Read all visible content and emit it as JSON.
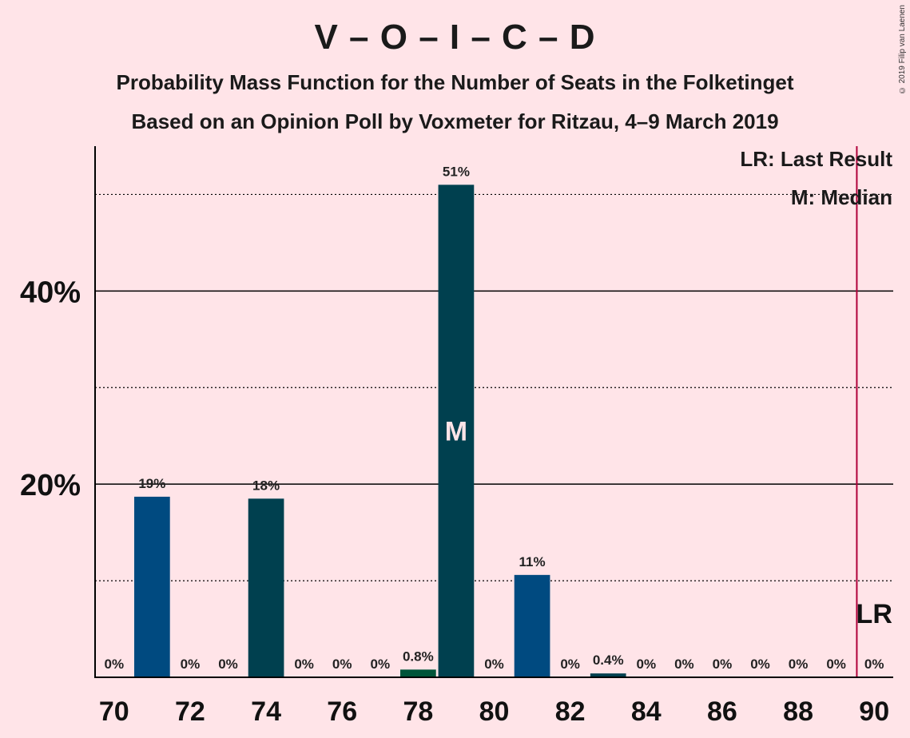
{
  "title": "V – O – I – C – D",
  "subtitle_1": "Probability Mass Function for the Number of Seats in the Folketinget",
  "subtitle_2": "Based on an Opinion Poll by Voxmeter for Ritzau, 4–9 March 2019",
  "copyright": "© 2019 Filip van Laenen",
  "legend": {
    "last_result": "LR: Last Result",
    "median": "M: Median"
  },
  "markers": {
    "median_label": "M",
    "last_result_label": "LR"
  },
  "colors": {
    "background": "#FFE4E8",
    "bar_blue": "#004A80",
    "bar_teal": "#00404F",
    "bar_green": "#00553A",
    "last_result_line": "#B0003A"
  },
  "chart_data": {
    "type": "bar",
    "xlabel": "",
    "ylabel": "",
    "x_ticks": [
      70,
      72,
      74,
      76,
      78,
      80,
      82,
      84,
      86,
      88,
      90
    ],
    "y_ticks": [
      {
        "value": 20,
        "label": "20%"
      },
      {
        "value": 40,
        "label": "40%"
      }
    ],
    "ylim": [
      0,
      55
    ],
    "xlim": [
      69.5,
      90.5
    ],
    "gridlines": {
      "solid": [
        20,
        40
      ],
      "dotted": [
        10,
        30,
        50
      ]
    },
    "median": 79,
    "last_result": 90,
    "x": [
      70,
      71,
      72,
      73,
      74,
      75,
      76,
      77,
      78,
      79,
      80,
      81,
      82,
      83,
      84,
      85,
      86,
      87,
      88,
      89,
      90
    ],
    "values": [
      0,
      18.7,
      0,
      0,
      18.5,
      0,
      0,
      0,
      0.8,
      51,
      0,
      10.6,
      0,
      0.4,
      0,
      0,
      0,
      0,
      0,
      0,
      0
    ],
    "labels": [
      "0%",
      "19%",
      "0%",
      "0%",
      "18%",
      "0%",
      "0%",
      "0%",
      "0.8%",
      "51%",
      "0%",
      "11%",
      "0%",
      "0.4%",
      "0%",
      "0%",
      "0%",
      "0%",
      "0%",
      "0%",
      "0%"
    ],
    "bar_colors": [
      "#004A80",
      "#004A80",
      "#004A80",
      "#004A80",
      "#00404F",
      "#00404F",
      "#00404F",
      "#00553A",
      "#00553A",
      "#00404F",
      "#004A80",
      "#004A80",
      "#004A80",
      "#00404F",
      "#00404F",
      "#00404F",
      "#00404F",
      "#00404F",
      "#00404F",
      "#00404F",
      "#00404F"
    ]
  }
}
